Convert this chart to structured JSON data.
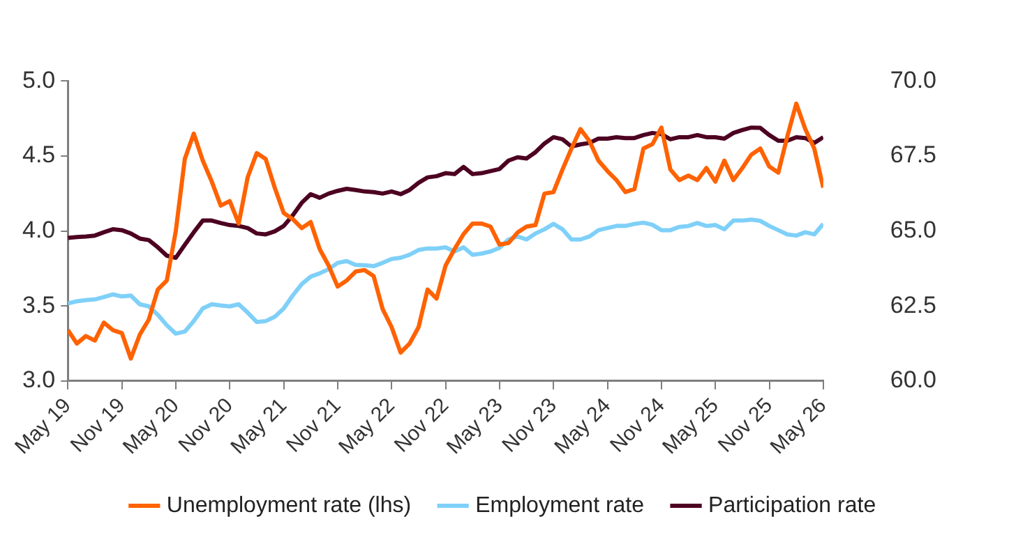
{
  "chart_data": {
    "type": "line",
    "x": [
      "2019-05",
      "2019-06",
      "2019-07",
      "2019-08",
      "2019-09",
      "2019-10",
      "2019-11",
      "2019-12",
      "2020-01",
      "2020-02",
      "2020-03",
      "2020-04",
      "2020-05",
      "2020-06",
      "2020-07",
      "2020-08",
      "2020-09",
      "2020-10",
      "2020-11",
      "2020-12",
      "2021-01",
      "2021-02",
      "2021-03",
      "2021-04",
      "2021-05",
      "2021-06",
      "2021-07",
      "2021-08",
      "2021-09",
      "2021-10",
      "2021-11",
      "2021-12",
      "2022-01",
      "2022-02",
      "2022-03",
      "2022-04",
      "2022-05",
      "2022-06",
      "2022-07",
      "2022-08",
      "2022-09",
      "2022-10",
      "2022-11",
      "2022-12",
      "2023-01",
      "2023-02",
      "2023-03",
      "2023-04",
      "2023-05",
      "2023-06",
      "2023-07",
      "2023-08",
      "2023-09",
      "2023-10",
      "2023-11",
      "2023-12",
      "2024-01",
      "2024-02",
      "2024-03",
      "2024-04",
      "2024-05",
      "2024-06",
      "2024-07",
      "2024-08",
      "2024-09",
      "2024-10",
      "2024-11",
      "2024-12",
      "2025-01",
      "2025-02",
      "2025-03",
      "2025-04",
      "2025-05",
      "2025-06",
      "2025-07",
      "2025-08",
      "2025-09",
      "2025-10",
      "2025-11",
      "2025-12",
      "2026-01",
      "2026-02",
      "2026-03",
      "2026-04",
      "2026-05"
    ],
    "series": [
      {
        "name": "Unemployment rate (lhs)",
        "color": "#ff6200",
        "values": [
          3.34,
          3.25,
          3.3,
          3.27,
          3.39,
          3.34,
          3.32,
          3.15,
          3.31,
          3.41,
          3.61,
          3.67,
          4.0,
          4.48,
          4.65,
          4.47,
          4.33,
          4.17,
          4.2,
          4.05,
          4.36,
          4.52,
          4.48,
          4.29,
          4.12,
          4.08,
          4.02,
          4.06,
          3.88,
          3.77,
          3.63,
          3.67,
          3.73,
          3.74,
          3.7,
          3.48,
          3.36,
          3.19,
          3.25,
          3.36,
          3.61,
          3.55,
          3.77,
          3.88,
          3.98,
          4.05,
          4.05,
          4.03,
          3.91,
          3.92,
          3.99,
          4.03,
          4.04,
          4.25,
          4.26,
          4.41,
          4.55,
          4.68,
          4.6,
          4.47,
          4.4,
          4.34,
          4.26,
          4.28,
          4.55,
          4.58,
          4.69,
          4.41,
          4.34,
          4.37,
          4.34,
          4.42,
          4.33,
          4.47,
          4.34,
          4.42,
          4.51,
          4.55,
          4.43,
          4.39,
          4.63,
          4.85,
          4.68,
          4.55,
          4.29
        ]
      },
      {
        "name": "Employment rate",
        "color": "#7fd0f8",
        "axis": "y2",
        "values": [
          62.59,
          62.66,
          62.7,
          62.72,
          62.8,
          62.89,
          62.82,
          62.85,
          62.56,
          62.49,
          62.21,
          61.86,
          61.58,
          61.65,
          62.0,
          62.42,
          62.56,
          62.52,
          62.49,
          62.56,
          62.28,
          61.97,
          62.0,
          62.14,
          62.42,
          62.85,
          63.23,
          63.48,
          63.59,
          63.73,
          63.94,
          64.0,
          63.87,
          63.86,
          63.83,
          63.94,
          64.07,
          64.11,
          64.21,
          64.37,
          64.42,
          64.42,
          64.46,
          64.32,
          64.46,
          64.21,
          64.25,
          64.32,
          64.44,
          64.72,
          64.82,
          64.72,
          64.92,
          65.06,
          65.24,
          65.06,
          64.72,
          64.72,
          64.82,
          65.03,
          65.1,
          65.17,
          65.17,
          65.24,
          65.28,
          65.21,
          65.03,
          65.03,
          65.14,
          65.17,
          65.27,
          65.17,
          65.2,
          65.06,
          65.35,
          65.35,
          65.38,
          65.34,
          65.17,
          65.03,
          64.89,
          64.85,
          64.96,
          64.89,
          65.24
        ]
      },
      {
        "name": "Participation rate",
        "color": "#4d0021",
        "axis": "y2",
        "values": [
          64.77,
          64.8,
          64.82,
          64.85,
          64.96,
          65.06,
          65.03,
          64.92,
          64.75,
          64.7,
          64.46,
          64.18,
          64.11,
          64.54,
          64.96,
          65.35,
          65.35,
          65.27,
          65.2,
          65.17,
          65.1,
          64.92,
          64.89,
          64.99,
          65.17,
          65.52,
          65.94,
          66.23,
          66.11,
          66.25,
          66.34,
          66.41,
          66.37,
          66.32,
          66.3,
          66.25,
          66.32,
          66.23,
          66.37,
          66.61,
          66.79,
          66.83,
          66.93,
          66.9,
          67.14,
          66.9,
          66.93,
          67.0,
          67.07,
          67.35,
          67.46,
          67.42,
          67.63,
          67.92,
          68.13,
          68.06,
          67.82,
          67.89,
          67.94,
          68.08,
          68.08,
          68.13,
          68.1,
          68.1,
          68.2,
          68.27,
          68.23,
          68.06,
          68.13,
          68.13,
          68.2,
          68.13,
          68.13,
          68.08,
          68.27,
          68.37,
          68.45,
          68.44,
          68.2,
          68.01,
          68.01,
          68.13,
          68.1,
          67.94,
          68.13
        ]
      }
    ],
    "xlim": [
      "2019-05",
      "2026-05"
    ],
    "xticks": [
      {
        "value": "2019-05",
        "label": "May 19"
      },
      {
        "value": "2019-11",
        "label": "Nov 19"
      },
      {
        "value": "2020-05",
        "label": "May 20"
      },
      {
        "value": "2020-11",
        "label": "Nov 20"
      },
      {
        "value": "2021-05",
        "label": "May 21"
      },
      {
        "value": "2021-11",
        "label": "Nov 21"
      },
      {
        "value": "2022-05",
        "label": "May 22"
      },
      {
        "value": "2022-11",
        "label": "Nov 22"
      },
      {
        "value": "2023-05",
        "label": "May 23"
      },
      {
        "value": "2023-11",
        "label": "Nov 23"
      },
      {
        "value": "2024-05",
        "label": "May 24"
      },
      {
        "value": "2024-11",
        "label": "Nov 24"
      },
      {
        "value": "2025-05",
        "label": "May 25"
      },
      {
        "value": "2025-11",
        "label": "Nov 25"
      },
      {
        "value": "2026-05",
        "label": "May 26"
      }
    ],
    "ylim": [
      3,
      5
    ],
    "yticks": [
      {
        "value": 3,
        "label": "3.0"
      },
      {
        "value": 3.5,
        "label": "3.5"
      },
      {
        "value": 4,
        "label": "4.0"
      },
      {
        "value": 4.5,
        "label": "4.5"
      },
      {
        "value": 5,
        "label": "5.0"
      }
    ],
    "y2lim": [
      60,
      70
    ],
    "y2ticks": [
      {
        "value": 60,
        "label": "60.0"
      },
      {
        "value": 62.5,
        "label": "62.5"
      },
      {
        "value": 65,
        "label": "65.0"
      },
      {
        "value": 67.5,
        "label": "67.5"
      },
      {
        "value": 70,
        "label": "70.0"
      }
    ],
    "grid": false,
    "legend": "bottom",
    "marker": "none",
    "line_style": "solid"
  }
}
